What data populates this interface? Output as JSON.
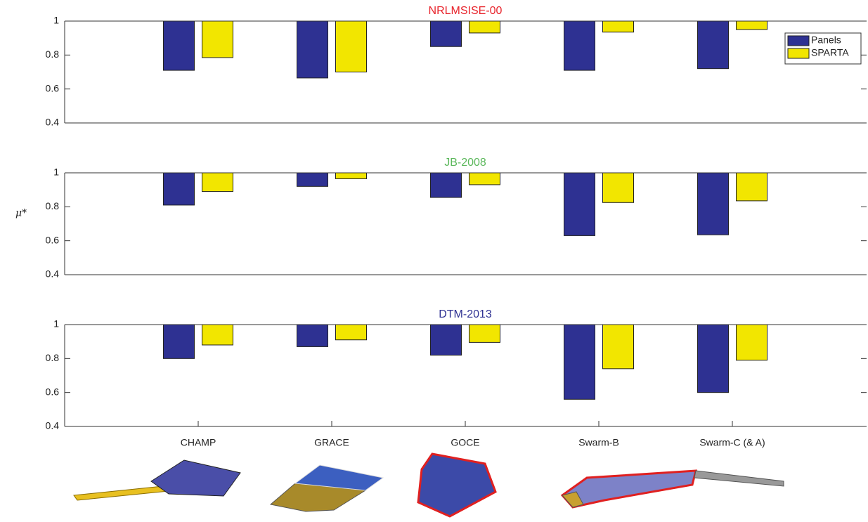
{
  "chart_data": [
    {
      "type": "bar",
      "title": "NRLMSISE-00",
      "series": [
        {
          "name": "Panels",
          "color": "#2e3192",
          "values": [
            0.71,
            0.665,
            0.85,
            0.71,
            0.72
          ]
        },
        {
          "name": "SPARTA",
          "color": "#f2e600",
          "values": [
            0.785,
            0.7,
            0.93,
            0.935,
            0.95
          ]
        }
      ],
      "ylim": [
        0.4,
        1
      ],
      "yticks": [
        0.4,
        0.6,
        0.8,
        1
      ],
      "legend": "upper right"
    },
    {
      "type": "bar",
      "title": "JB-2008",
      "ylabel": "μ*",
      "series": [
        {
          "color": "#2e3192",
          "values": [
            0.81,
            0.92,
            0.855,
            0.63,
            0.635
          ]
        },
        {
          "color": "#f2e600",
          "values": [
            0.89,
            0.965,
            0.93,
            0.825,
            0.835
          ]
        }
      ],
      "ylim": [
        0.4,
        1
      ],
      "yticks": [
        0.4,
        0.6,
        0.8,
        1
      ]
    },
    {
      "type": "bar",
      "title": "DTM-2013",
      "categories": [
        "CHAMP",
        "GRACE",
        "GOCE",
        "Swarm-B",
        "Swarm-C (& A)"
      ],
      "series": [
        {
          "color": "#2e3192",
          "values": [
            0.8,
            0.87,
            0.82,
            0.56,
            0.6
          ]
        },
        {
          "color": "#f2e600",
          "values": [
            0.88,
            0.91,
            0.895,
            0.74,
            0.79
          ]
        }
      ],
      "ylim": [
        0.4,
        1
      ],
      "yticks": [
        0.4,
        0.6,
        0.8,
        1
      ]
    }
  ]
}
